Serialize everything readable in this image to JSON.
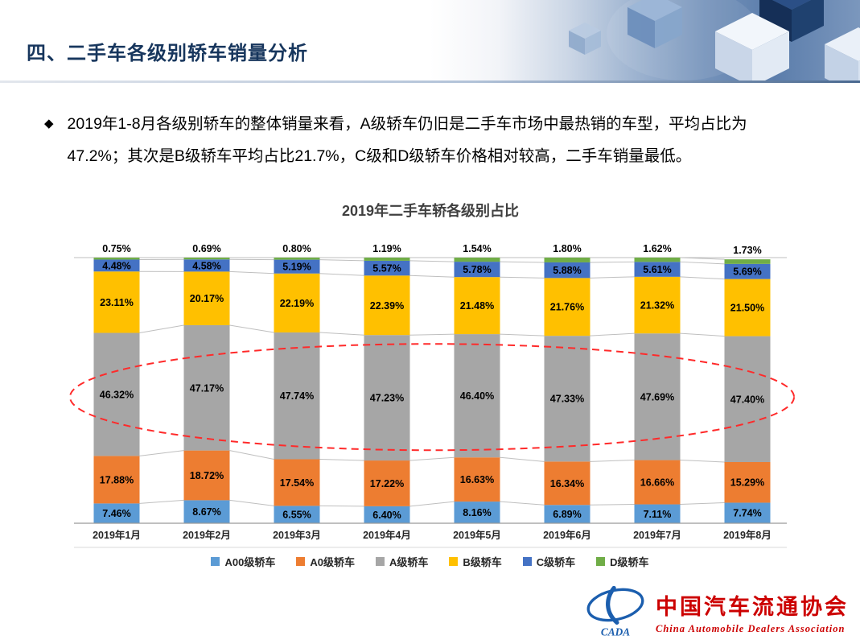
{
  "header": {
    "title": "四、二手车各级别轿车销量分析"
  },
  "intro": {
    "bullet": "◆",
    "lines": [
      "2019年1-8月各级别轿车的整体销量来看，A级轿车仍旧是二手车市场中最热销的车型，平均占比为",
      "47.2%；其次是B级轿车平均占比21.7%，C级和D级轿车价格相对较高，二手车销量最低。"
    ]
  },
  "chart_data": {
    "type": "bar",
    "stacked": true,
    "title": "2019年二手车轿各级别占比",
    "categories": [
      "2019年1月",
      "2019年2月",
      "2019年3月",
      "2019年4月",
      "2019年5月",
      "2019年6月",
      "2019年7月",
      "2019年8月"
    ],
    "series": [
      {
        "name": "A00级轿车",
        "color": "#5B9BD5",
        "values": [
          7.46,
          8.67,
          6.55,
          6.4,
          8.16,
          6.89,
          7.11,
          7.74
        ]
      },
      {
        "name": "A0级轿车",
        "color": "#ED7D31",
        "values": [
          17.88,
          18.72,
          17.54,
          17.22,
          16.63,
          16.34,
          16.66,
          15.29
        ]
      },
      {
        "name": "A级轿车",
        "color": "#A6A6A6",
        "values": [
          46.32,
          47.17,
          47.74,
          47.23,
          46.4,
          47.33,
          47.69,
          47.4
        ]
      },
      {
        "name": "B级轿车",
        "color": "#FFC000",
        "values": [
          23.11,
          20.17,
          22.19,
          22.39,
          21.48,
          21.76,
          21.32,
          21.5
        ]
      },
      {
        "name": "C级轿车",
        "color": "#4472C4",
        "values": [
          4.48,
          4.58,
          5.19,
          5.57,
          5.78,
          5.88,
          5.61,
          5.69
        ]
      },
      {
        "name": "D级轿车",
        "color": "#70AD47",
        "values": [
          0.75,
          0.69,
          0.8,
          1.19,
          1.54,
          1.8,
          1.62,
          1.73
        ],
        "label_position": "above"
      }
    ],
    "ylim": [
      0,
      100
    ],
    "value_suffix": "%",
    "grid": "top-line-only",
    "connector_lines": true,
    "legend_position": "bottom",
    "annotations": [
      {
        "type": "ellipse",
        "style": "red-dashed",
        "highlights": "A级轿车",
        "color": "#FF2A2A"
      }
    ]
  },
  "footer": {
    "logo_abbr": "CADA",
    "logo_cn": "中国汽车流通协会",
    "logo_en": "China Automobile Dealers Association"
  }
}
